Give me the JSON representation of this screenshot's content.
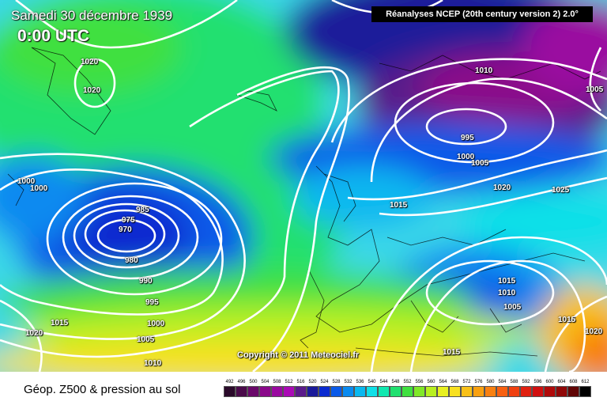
{
  "header": {
    "date": "Samedi 30 décembre 1939",
    "time": "0:00 UTC",
    "source": "Réanalyses NCEP (20th century version 2) 2.0°"
  },
  "copyright": "Copyright © 2011 Meteociel.fr",
  "footer": {
    "caption": "Géop. Z500 & pression au sol"
  },
  "scale": [
    {
      "label": "492",
      "color": "#2a0a2a"
    },
    {
      "label": "496",
      "color": "#4a0a4a"
    },
    {
      "label": "500",
      "color": "#6a086a"
    },
    {
      "label": "504",
      "color": "#8a088a"
    },
    {
      "label": "508",
      "color": "#9a0aa0"
    },
    {
      "label": "512",
      "color": "#aa0ab5"
    },
    {
      "label": "516",
      "color": "#5a1a8a"
    },
    {
      "label": "520",
      "color": "#1a1a9a"
    },
    {
      "label": "524",
      "color": "#0a2ad0"
    },
    {
      "label": "528",
      "color": "#0a5ae8"
    },
    {
      "label": "532",
      "color": "#0a8af0"
    },
    {
      "label": "536",
      "color": "#0ab8f0"
    },
    {
      "label": "540",
      "color": "#10e0e8"
    },
    {
      "label": "544",
      "color": "#10e8b0"
    },
    {
      "label": "548",
      "color": "#20e070"
    },
    {
      "label": "552",
      "color": "#40e040"
    },
    {
      "label": "556",
      "color": "#80e828"
    },
    {
      "label": "560",
      "color": "#b8f020"
    },
    {
      "label": "564",
      "color": "#e8f020"
    },
    {
      "label": "568",
      "color": "#f8e020"
    },
    {
      "label": "572",
      "color": "#f8c018"
    },
    {
      "label": "576",
      "color": "#f8a010"
    },
    {
      "label": "580",
      "color": "#f88010"
    },
    {
      "label": "584",
      "color": "#f86010"
    },
    {
      "label": "588",
      "color": "#f04010"
    },
    {
      "label": "592",
      "color": "#e02010"
    },
    {
      "label": "596",
      "color": "#d01010"
    },
    {
      "label": "600",
      "color": "#b00a0a"
    },
    {
      "label": "604",
      "color": "#900808"
    },
    {
      "label": "608",
      "color": "#600505"
    },
    {
      "label": "612",
      "color": "#000000"
    }
  ],
  "isobar_labels": [
    {
      "text": "1020"
    },
    {
      "text": "1020"
    },
    {
      "text": "1000"
    },
    {
      "text": "1000"
    },
    {
      "text": "985"
    },
    {
      "text": "975"
    },
    {
      "text": "970"
    },
    {
      "text": "980"
    },
    {
      "text": "990"
    },
    {
      "text": "995"
    },
    {
      "text": "1000"
    },
    {
      "text": "1005"
    },
    {
      "text": "1010"
    },
    {
      "text": "1015"
    },
    {
      "text": "1020"
    },
    {
      "text": "1010"
    },
    {
      "text": "995"
    },
    {
      "text": "1000"
    },
    {
      "text": "1005"
    },
    {
      "text": "1020"
    },
    {
      "text": "1025"
    },
    {
      "text": "1015"
    },
    {
      "text": "1015"
    },
    {
      "text": "1010"
    },
    {
      "text": "1005"
    },
    {
      "text": "1015"
    },
    {
      "text": "1020"
    },
    {
      "text": "1005"
    },
    {
      "text": "1015"
    }
  ]
}
